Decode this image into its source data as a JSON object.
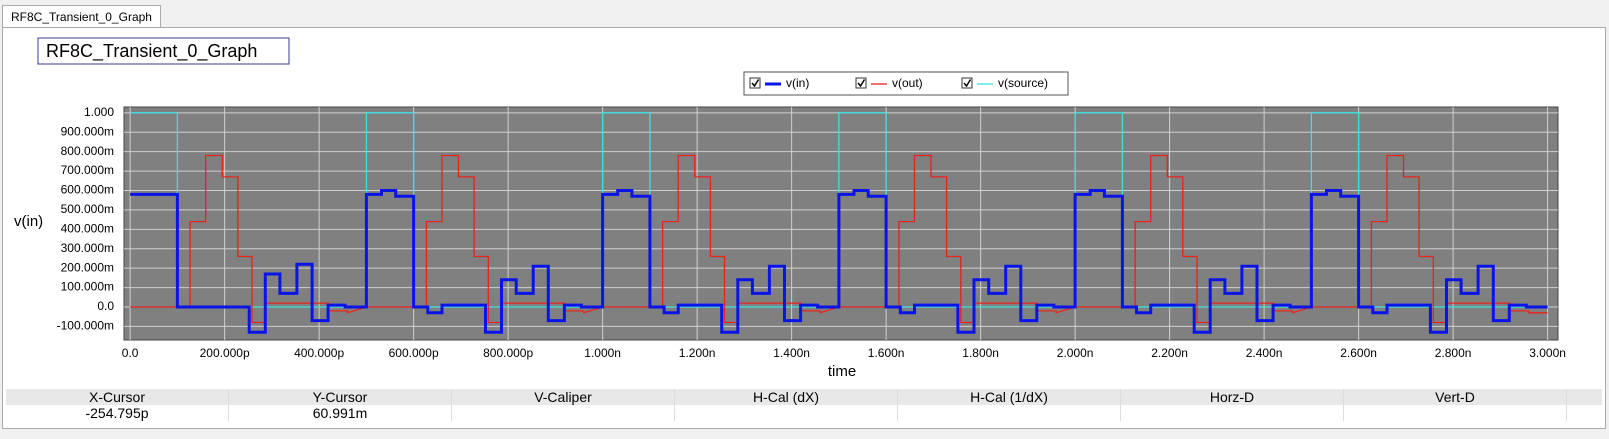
{
  "tab": "RF8C_Transient_0_Graph",
  "chart_data": {
    "type": "line",
    "title": "RF8C_Transient_0_Graph",
    "ylabel": "v(in)",
    "xlabel": "time",
    "grid": true,
    "background": "#808080",
    "xlim": [
      -13,
      3022
    ],
    "ylim": [
      -0.17,
      1.03
    ],
    "xticks": [
      {
        "value": 0,
        "label": "0.0"
      },
      {
        "value": 200,
        "label": "200.000p"
      },
      {
        "value": 400,
        "label": "400.000p"
      },
      {
        "value": 600,
        "label": "600.000p"
      },
      {
        "value": 800,
        "label": "800.000p"
      },
      {
        "value": 1000,
        "label": "1.000n"
      },
      {
        "value": 1200,
        "label": "1.200n"
      },
      {
        "value": 1400,
        "label": "1.400n"
      },
      {
        "value": 1600,
        "label": "1.600n"
      },
      {
        "value": 1800,
        "label": "1.800n"
      },
      {
        "value": 2000,
        "label": "2.000n"
      },
      {
        "value": 2200,
        "label": "2.200n"
      },
      {
        "value": 2400,
        "label": "2.400n"
      },
      {
        "value": 2600,
        "label": "2.600n"
      },
      {
        "value": 2800,
        "label": "2.800n"
      },
      {
        "value": 3000,
        "label": "3.000n"
      }
    ],
    "yticks": [
      {
        "value": 1,
        "label": "1.000"
      },
      {
        "value": 0.9,
        "label": "900.000m"
      },
      {
        "value": 0.8,
        "label": "800.000m"
      },
      {
        "value": 0.7,
        "label": "700.000m"
      },
      {
        "value": 0.6,
        "label": "600.000m"
      },
      {
        "value": 0.5,
        "label": "500.000m"
      },
      {
        "value": 0.4,
        "label": "400.000m"
      },
      {
        "value": 0.3,
        "label": "300.000m"
      },
      {
        "value": 0.2,
        "label": "200.000m"
      },
      {
        "value": 0.1,
        "label": "100.000m"
      },
      {
        "value": 0,
        "label": "0.0"
      },
      {
        "value": -0.1,
        "label": "-100.000m"
      }
    ],
    "series": [
      {
        "name": "v(in)",
        "color": "#0a14e6",
        "width": 3,
        "x": [
          0,
          100,
          100,
          252,
          252,
          286,
          286,
          317,
          317,
          353,
          353,
          385,
          385,
          419,
          419,
          455,
          455,
          500,
          500,
          532,
          532,
          562,
          562,
          600,
          600,
          630,
          630,
          660,
          660,
          752,
          752,
          786,
          786,
          817,
          817,
          853,
          853,
          885,
          885,
          919,
          919,
          955,
          955,
          1000,
          1000,
          1032,
          1032,
          1062,
          1062,
          1100,
          1100,
          1130,
          1130,
          1160,
          1160,
          1252,
          1252,
          1286,
          1286,
          1317,
          1317,
          1353,
          1353,
          1385,
          1385,
          1419,
          1419,
          1455,
          1455,
          1500,
          1500,
          1532,
          1532,
          1562,
          1562,
          1600,
          1600,
          1630,
          1630,
          1660,
          1660,
          1752,
          1752,
          1786,
          1786,
          1817,
          1817,
          1853,
          1853,
          1885,
          1885,
          1919,
          1919,
          1955,
          1955,
          2000,
          2000,
          2032,
          2032,
          2062,
          2062,
          2100,
          2100,
          2130,
          2130,
          2160,
          2160,
          2252,
          2252,
          2286,
          2286,
          2317,
          2317,
          2353,
          2353,
          2385,
          2385,
          2419,
          2419,
          2455,
          2455,
          2500,
          2500,
          2532,
          2532,
          2562,
          2562,
          2600,
          2600,
          2630,
          2630,
          2660,
          2660,
          2752,
          2752,
          2786,
          2786,
          2817,
          2817,
          2853,
          2853,
          2885,
          2885,
          2919,
          2919,
          2955,
          2955,
          3000
        ],
        "values": [
          0.58,
          0.58,
          0,
          0,
          -0.13,
          -0.13,
          0.17,
          0.17,
          0.07,
          0.07,
          0.22,
          0.22,
          -0.07,
          -0.07,
          0.01,
          0.01,
          0,
          0,
          0.58,
          0.58,
          0.6,
          0.6,
          0.57,
          0.57,
          0,
          0,
          -0.03,
          -0.03,
          0.01,
          0.01,
          -0.13,
          -0.13,
          0.14,
          0.14,
          0.07,
          0.07,
          0.21,
          0.21,
          -0.07,
          -0.07,
          0.01,
          0.01,
          0,
          0,
          0.58,
          0.58,
          0.6,
          0.6,
          0.57,
          0.57,
          0,
          0,
          -0.03,
          -0.03,
          0.01,
          0.01,
          -0.13,
          -0.13,
          0.14,
          0.14,
          0.07,
          0.07,
          0.21,
          0.21,
          -0.07,
          -0.07,
          0.01,
          0.01,
          0,
          0,
          0.58,
          0.58,
          0.6,
          0.6,
          0.57,
          0.57,
          0,
          0,
          -0.03,
          -0.03,
          0.01,
          0.01,
          -0.13,
          -0.13,
          0.14,
          0.14,
          0.07,
          0.07,
          0.21,
          0.21,
          -0.07,
          -0.07,
          0.01,
          0.01,
          0,
          0,
          0.58,
          0.58,
          0.6,
          0.6,
          0.57,
          0.57,
          0,
          0,
          -0.03,
          -0.03,
          0.01,
          0.01,
          -0.13,
          -0.13,
          0.14,
          0.14,
          0.07,
          0.07,
          0.21,
          0.21,
          -0.07,
          -0.07,
          0.01,
          0.01,
          0,
          0,
          0.58,
          0.58,
          0.6,
          0.6,
          0.57,
          0.57,
          0,
          0,
          -0.03,
          -0.03,
          0.01,
          0.01,
          -0.13,
          -0.13,
          0.14,
          0.14,
          0.07,
          0.07,
          0.21,
          0.21,
          -0.07,
          -0.07,
          0.01,
          0.01,
          0,
          0
        ]
      },
      {
        "name": "v(out)",
        "color": "#e8231c",
        "width": 1.3,
        "x": [
          0,
          127,
          127,
          160,
          160,
          195,
          195,
          228,
          228,
          258,
          258,
          286,
          286,
          420,
          420,
          460,
          460,
          500,
          627,
          627,
          660,
          660,
          695,
          695,
          728,
          728,
          758,
          758,
          786,
          786,
          920,
          920,
          960,
          960,
          1000,
          1127,
          1127,
          1160,
          1160,
          1195,
          1195,
          1228,
          1228,
          1258,
          1258,
          1286,
          1286,
          1420,
          1420,
          1460,
          1460,
          1500,
          1627,
          1627,
          1660,
          1660,
          1695,
          1695,
          1728,
          1728,
          1758,
          1758,
          1786,
          1786,
          1920,
          1920,
          1960,
          1960,
          2000,
          2127,
          2127,
          2160,
          2160,
          2195,
          2195,
          2228,
          2228,
          2258,
          2258,
          2286,
          2286,
          2420,
          2420,
          2460,
          2460,
          2500,
          2627,
          2627,
          2660,
          2660,
          2695,
          2695,
          2728,
          2728,
          2758,
          2758,
          2786,
          2786,
          2920,
          2920,
          2960,
          2960,
          3000
        ],
        "values": [
          0,
          0,
          0.44,
          0.44,
          0.78,
          0.78,
          0.67,
          0.67,
          0.26,
          0.26,
          -0.08,
          -0.08,
          0.02,
          0.02,
          -0.02,
          -0.02,
          -0.03,
          0,
          0,
          0.44,
          0.44,
          0.78,
          0.78,
          0.67,
          0.67,
          0.26,
          0.26,
          -0.08,
          -0.08,
          0.02,
          0.02,
          -0.02,
          -0.02,
          -0.03,
          0,
          0,
          0.44,
          0.44,
          0.78,
          0.78,
          0.67,
          0.67,
          0.26,
          0.26,
          -0.08,
          -0.08,
          0.02,
          0.02,
          -0.02,
          -0.02,
          -0.03,
          0,
          0,
          0.44,
          0.44,
          0.78,
          0.78,
          0.67,
          0.67,
          0.26,
          0.26,
          -0.08,
          -0.08,
          0.02,
          0.02,
          -0.02,
          -0.02,
          -0.03,
          0,
          0,
          0.44,
          0.44,
          0.78,
          0.78,
          0.67,
          0.67,
          0.26,
          0.26,
          -0.08,
          -0.08,
          0.02,
          0.02,
          -0.02,
          -0.02,
          -0.03,
          0,
          0,
          0.44,
          0.44,
          0.78,
          0.78,
          0.67,
          0.67,
          0.26,
          0.26,
          -0.08,
          -0.08,
          0.02,
          0.02,
          -0.02,
          -0.02,
          -0.03,
          -0.03
        ]
      },
      {
        "name": "v(source)",
        "color": "#3fe0e0",
        "width": 1.3,
        "x": [
          0,
          100,
          100,
          500,
          500,
          600,
          600,
          1000,
          1000,
          1100,
          1100,
          1500,
          1500,
          1600,
          1600,
          2000,
          2000,
          2100,
          2100,
          2500,
          2500,
          2600,
          2600,
          3000
        ],
        "values": [
          1,
          1,
          0,
          0,
          1,
          1,
          0,
          0,
          1,
          1,
          0,
          0,
          1,
          1,
          0,
          0,
          1,
          1,
          0,
          0,
          1,
          1,
          0,
          0
        ]
      }
    ]
  },
  "cursor_table": {
    "headers": [
      "X-Cursor",
      "Y-Cursor",
      "V-Caliper",
      "H-Cal (dX)",
      "H-Cal (1/dX)",
      "Horz-D",
      "Vert-D"
    ],
    "values": [
      "-254.795p",
      "60.991m"
    ]
  }
}
